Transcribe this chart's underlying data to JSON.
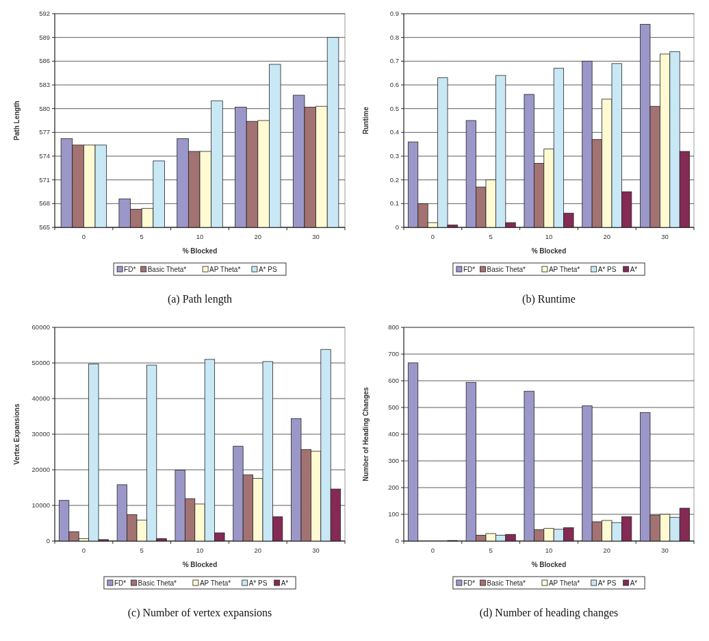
{
  "chart_data": [
    {
      "type": "bar",
      "title": "(a)  Path length",
      "xlabel": "% Blocked",
      "ylabel": "Path Length",
      "categories": [
        "0",
        "5",
        "10",
        "20",
        "30"
      ],
      "ylim": [
        565,
        592
      ],
      "yticks": [
        565,
        568,
        571,
        574,
        577,
        580,
        583,
        586,
        589,
        592
      ],
      "grid": "y",
      "legend": "bottom",
      "series": [
        {
          "name": "FD*",
          "color": "#9b97c8",
          "values": [
            576.2,
            568.6,
            576.2,
            580.2,
            581.7
          ]
        },
        {
          "name": "Basic Theta*",
          "color": "#a37272",
          "values": [
            575.4,
            567.3,
            574.6,
            578.4,
            580.2
          ]
        },
        {
          "name": "AP Theta*",
          "color": "#fffad2",
          "values": [
            575.4,
            567.4,
            574.6,
            578.5,
            580.3
          ]
        },
        {
          "name": "A* PS",
          "color": "#c8e8f6",
          "values": [
            575.4,
            573.4,
            581.0,
            585.6,
            589.0
          ]
        }
      ]
    },
    {
      "type": "bar",
      "title": "(b)  Runtime",
      "xlabel": "% Blocked",
      "ylabel": "Runtime",
      "categories": [
        "0",
        "5",
        "10",
        "20",
        "30"
      ],
      "ylim": [
        0,
        0.9
      ],
      "yticks": [
        0,
        0.1,
        0.2,
        0.3,
        0.4,
        0.5,
        0.6,
        0.7,
        0.8,
        0.9
      ],
      "grid": "y",
      "legend": "bottom",
      "series": [
        {
          "name": "FD*",
          "color": "#9b97c8",
          "values": [
            0.36,
            0.45,
            0.56,
            0.7,
            0.855
          ]
        },
        {
          "name": "Basic Theta*",
          "color": "#a37272",
          "values": [
            0.1,
            0.17,
            0.27,
            0.37,
            0.51
          ]
        },
        {
          "name": "AP Theta*",
          "color": "#fffad2",
          "values": [
            0.02,
            0.2,
            0.33,
            0.54,
            0.73
          ]
        },
        {
          "name": "A* PS",
          "color": "#c8e8f6",
          "values": [
            0.63,
            0.64,
            0.67,
            0.69,
            0.74
          ]
        },
        {
          "name": "A*",
          "color": "#842a54",
          "values": [
            0.01,
            0.02,
            0.06,
            0.15,
            0.32
          ]
        }
      ]
    },
    {
      "type": "bar",
      "title": "(c)  Number of vertex expansions",
      "xlabel": "% Blocked",
      "ylabel": "Vertex Expansions",
      "categories": [
        "0",
        "5",
        "10",
        "20",
        "30"
      ],
      "ylim": [
        0,
        60000
      ],
      "yticks": [
        0,
        10000,
        20000,
        30000,
        40000,
        50000,
        60000
      ],
      "grid": "y",
      "legend": "bottom",
      "series": [
        {
          "name": "FD*",
          "color": "#9b97c8",
          "values": [
            11400,
            15800,
            19900,
            26600,
            34400
          ]
        },
        {
          "name": "Basic Theta*",
          "color": "#a37272",
          "values": [
            2600,
            7400,
            11900,
            18600,
            25700
          ]
        },
        {
          "name": "AP Theta*",
          "color": "#fffad2",
          "values": [
            700,
            5900,
            10400,
            17600,
            25200
          ]
        },
        {
          "name": "A* PS",
          "color": "#c8e8f6",
          "values": [
            49700,
            49400,
            51000,
            50400,
            53800
          ]
        },
        {
          "name": "A*",
          "color": "#842a54",
          "values": [
            400,
            700,
            2300,
            6800,
            14600
          ]
        }
      ]
    },
    {
      "type": "bar",
      "title": "(d)  Number of heading changes",
      "xlabel": "% Blocked",
      "ylabel": "Number of Heading Changes",
      "categories": [
        "0",
        "5",
        "10",
        "20",
        "30"
      ],
      "ylim": [
        0,
        800
      ],
      "yticks": [
        0,
        100,
        200,
        300,
        400,
        500,
        600,
        700,
        800
      ],
      "grid": "y",
      "legend": "bottom",
      "series": [
        {
          "name": "FD*",
          "color": "#9b97c8",
          "values": [
            667,
            594,
            561,
            506,
            481
          ]
        },
        {
          "name": "Basic Theta*",
          "color": "#a37272",
          "values": [
            0,
            22,
            43,
            72,
            97
          ]
        },
        {
          "name": "AP Theta*",
          "color": "#fffad2",
          "values": [
            0,
            28,
            47,
            77,
            100
          ]
        },
        {
          "name": "A* PS",
          "color": "#c8e8f6",
          "values": [
            0,
            22,
            44,
            69,
            89
          ]
        },
        {
          "name": "A*",
          "color": "#842a54",
          "values": [
            2,
            25,
            50,
            91,
            123
          ]
        }
      ]
    }
  ]
}
